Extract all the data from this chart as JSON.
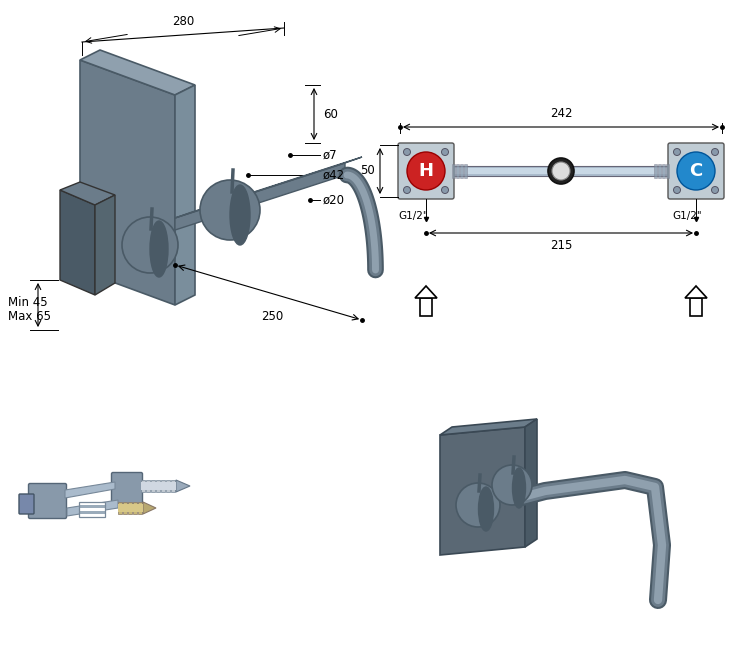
{
  "bg_color": "#ffffff",
  "line_color": "#000000",
  "faucet_color": "#6b7c8a",
  "faucet_dark": "#4a5a66",
  "faucet_light": "#8fa0ae",
  "faucet_mid": "#7a8e9c",
  "red_color": "#cc2222",
  "blue_color": "#2288cc",
  "dim_text_size": 8.5,
  "dim_min": "Min 45",
  "dim_max": "Max 65",
  "dim_o7": "ø7",
  "dim_o42": "ø42",
  "dim_o20": "ø20",
  "label_H": "H",
  "label_C": "C",
  "label_G12": "G1/2\""
}
